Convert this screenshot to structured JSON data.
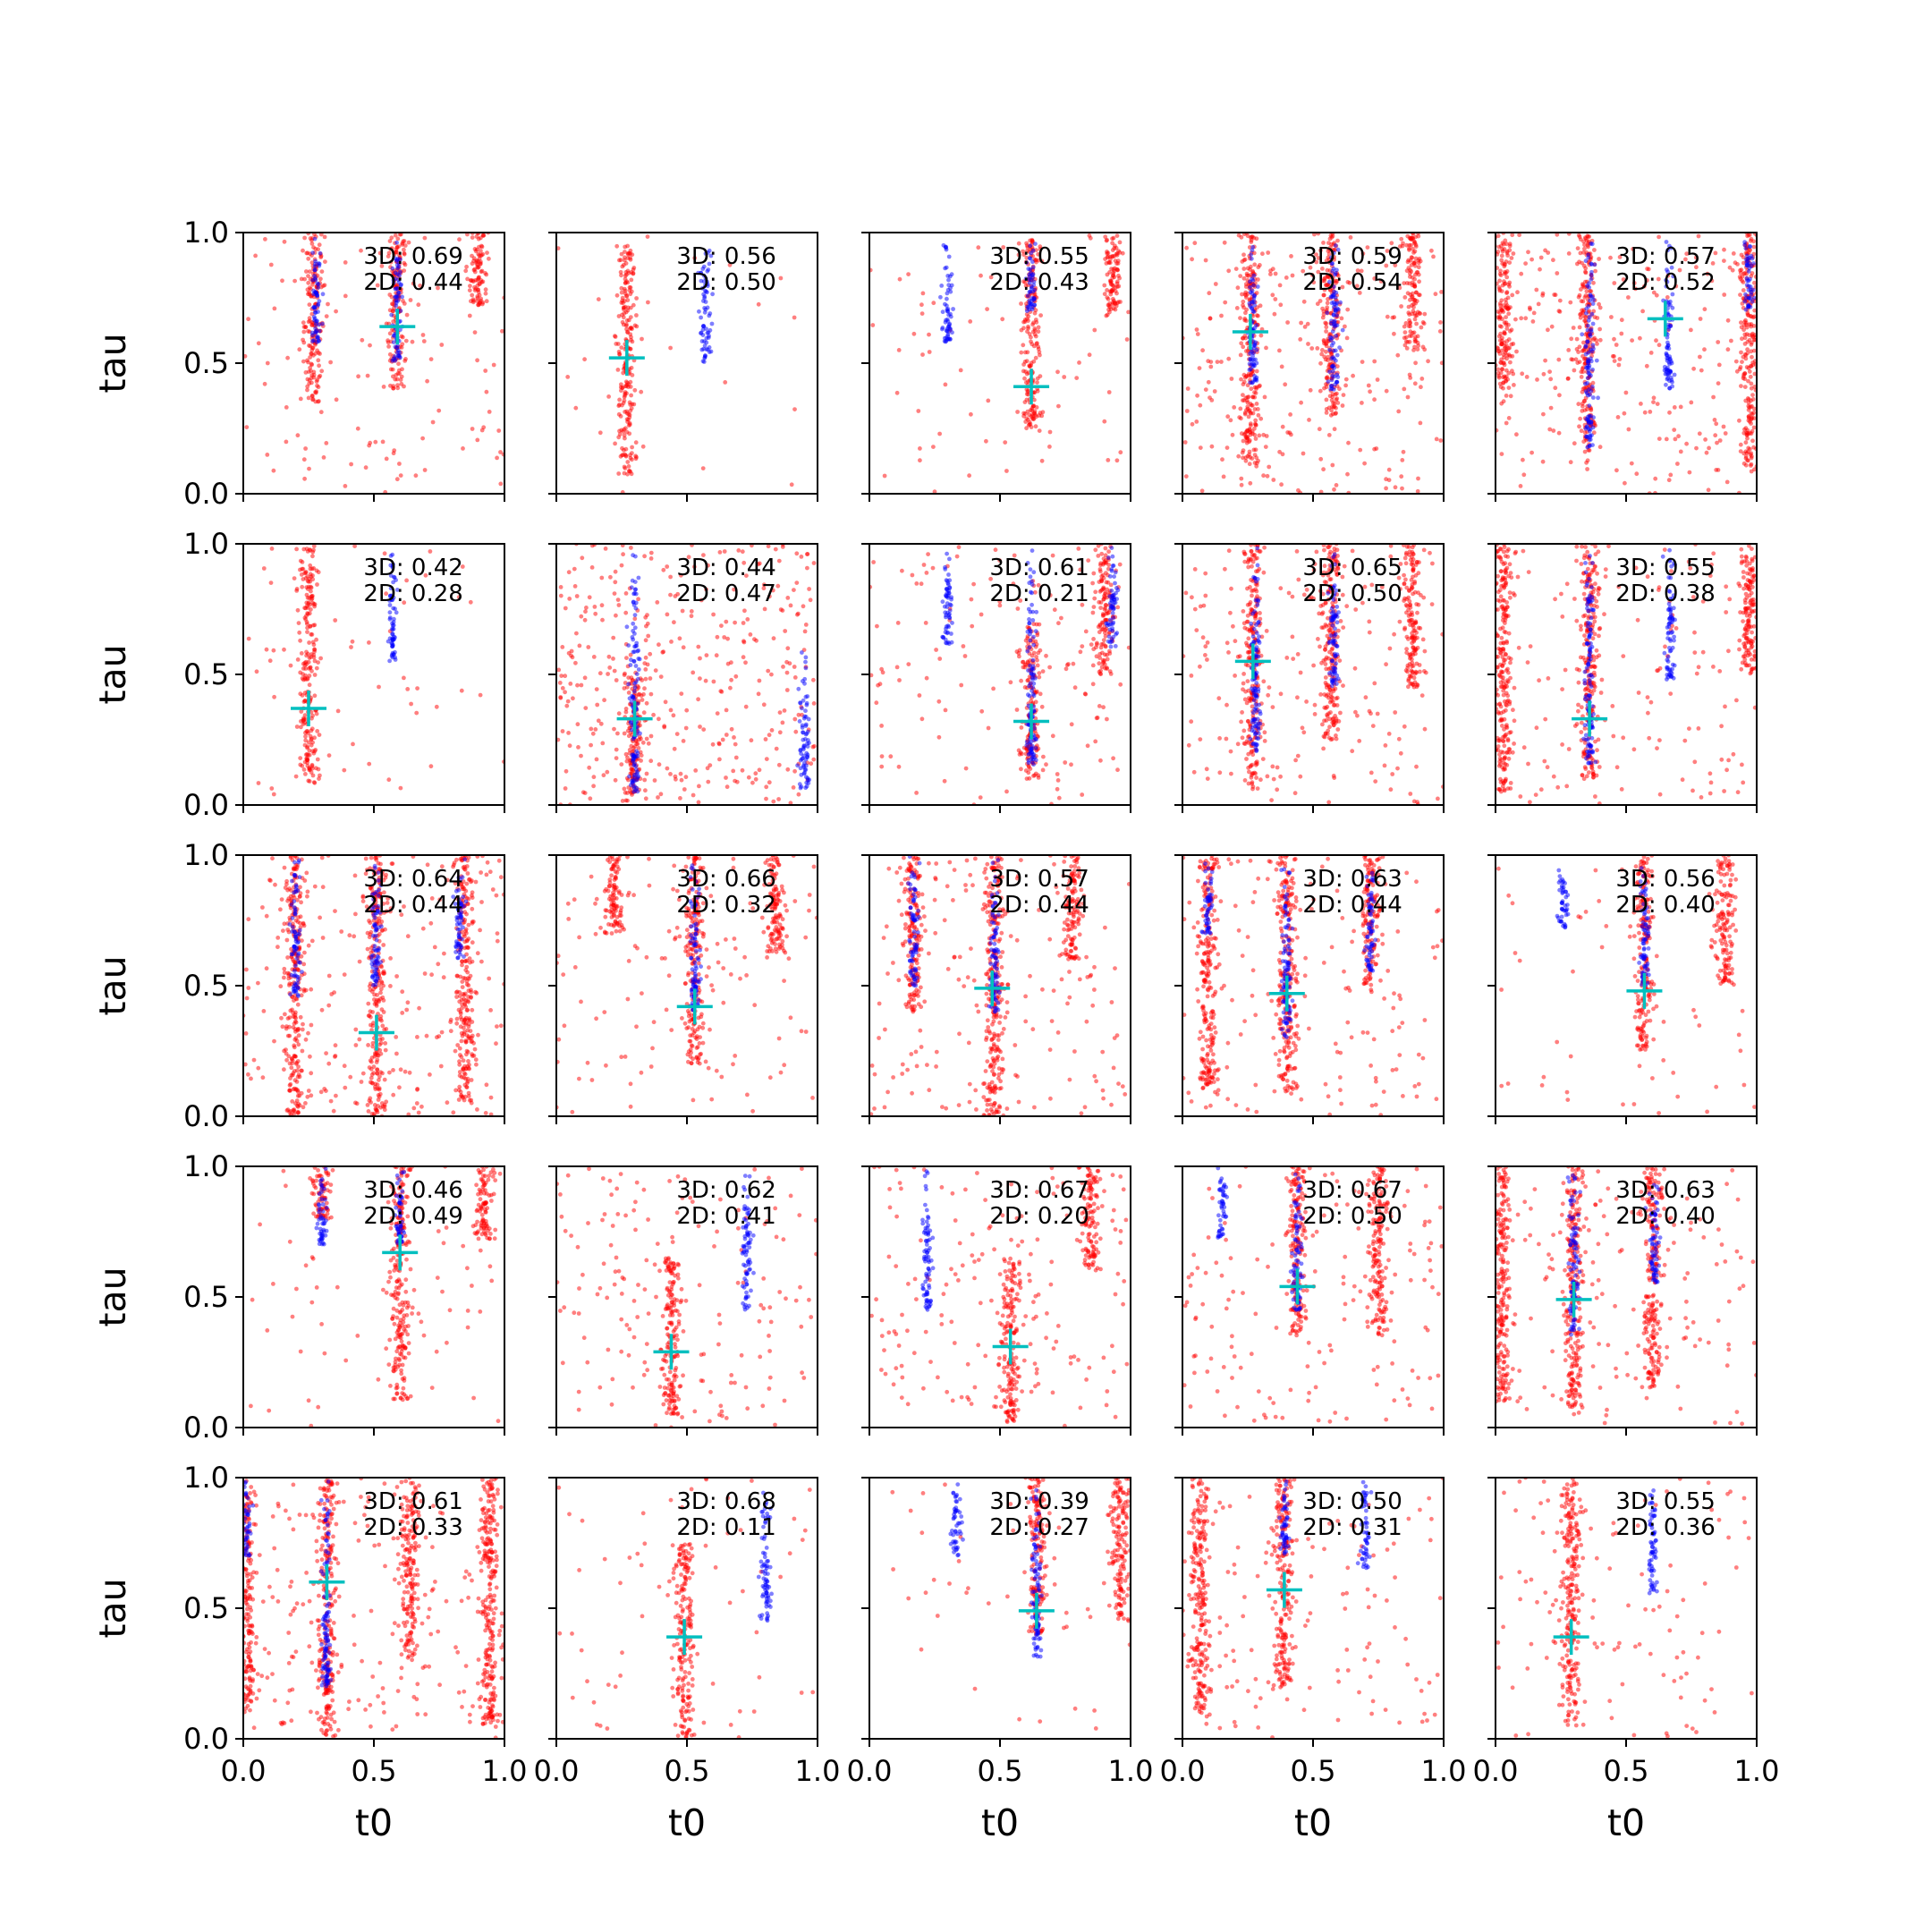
{
  "figure": {
    "xlabel": "t0",
    "ylabel": "tau",
    "xticks": [
      "0.0",
      "0.5",
      "1.0"
    ],
    "yticks": [
      "0.0",
      "0.5",
      "1.0"
    ],
    "colors": {
      "samples_a": "#ff0000",
      "samples_b": "#0000ff",
      "marker": "#00bfbf",
      "axes": "#000000"
    }
  },
  "chart_data": {
    "type": "scatter",
    "grid": false,
    "rows": 5,
    "cols": 5,
    "xlim": [
      0,
      1
    ],
    "ylim": [
      0,
      1
    ],
    "xlabel": "t0",
    "ylabel": "tau",
    "panels": [
      {
        "label_3d": "3D: 0.69",
        "label_2d": "2D: 0.44",
        "marker": [
          0.59,
          0.64
        ],
        "red_bands": [
          [
            0.27,
            0.35,
            1.0
          ],
          [
            0.59,
            0.4,
            1.0
          ],
          [
            0.9,
            0.72,
            1.0
          ]
        ],
        "blue_bands": [
          [
            0.28,
            0.58,
            1.0
          ],
          [
            0.59,
            0.5,
            1.0
          ]
        ],
        "scatter_red": 0.25
      },
      {
        "label_3d": "3D: 0.56",
        "label_2d": "2D: 0.50",
        "marker": [
          0.27,
          0.52
        ],
        "red_bands": [
          [
            0.27,
            0.07,
            0.95
          ]
        ],
        "blue_bands": [
          [
            0.57,
            0.5,
            1.0
          ]
        ],
        "scatter_red": 0.05
      },
      {
        "label_3d": "3D: 0.55",
        "label_2d": "2D: 0.43",
        "marker": [
          0.62,
          0.41
        ],
        "red_bands": [
          [
            0.62,
            0.24,
            1.0
          ],
          [
            0.93,
            0.68,
            1.0
          ]
        ],
        "blue_bands": [
          [
            0.3,
            0.58,
            1.0
          ],
          [
            0.62,
            0.7,
            1.0
          ]
        ],
        "scatter_red": 0.15
      },
      {
        "label_3d": "3D: 0.59",
        "label_2d": "2D: 0.54",
        "marker": [
          0.26,
          0.62
        ],
        "red_bands": [
          [
            0.26,
            0.1,
            1.0
          ],
          [
            0.57,
            0.3,
            1.0
          ],
          [
            0.88,
            0.55,
            1.0
          ]
        ],
        "blue_bands": [
          [
            0.27,
            0.42,
            1.0
          ],
          [
            0.58,
            0.38,
            1.0
          ]
        ],
        "scatter_red": 0.55
      },
      {
        "label_3d": "3D: 0.57",
        "label_2d": "2D: 0.52",
        "marker": [
          0.65,
          0.67
        ],
        "red_bands": [
          [
            0.03,
            0.4,
            1.0
          ],
          [
            0.35,
            0.15,
            1.0
          ],
          [
            0.97,
            0.1,
            1.0
          ]
        ],
        "blue_bands": [
          [
            0.36,
            0.17,
            1.0
          ],
          [
            0.66,
            0.4,
            1.0
          ],
          [
            0.97,
            0.7,
            1.0
          ]
        ],
        "scatter_red": 0.55
      },
      {
        "label_3d": "3D: 0.42",
        "label_2d": "2D: 0.28",
        "marker": [
          0.25,
          0.37
        ],
        "red_bands": [
          [
            0.25,
            0.08,
            1.0
          ]
        ],
        "blue_bands": [
          [
            0.57,
            0.55,
            1.0
          ]
        ],
        "scatter_red": 0.12
      },
      {
        "label_3d": "3D: 0.44",
        "label_2d": "2D: 0.47",
        "marker": [
          0.3,
          0.33
        ],
        "red_bands": [
          [
            0.3,
            0.02,
            0.5
          ]
        ],
        "blue_bands": [
          [
            0.3,
            0.05,
            1.0
          ],
          [
            0.95,
            0.05,
            0.6
          ]
        ],
        "scatter_red": 0.9
      },
      {
        "label_3d": "3D: 0.61",
        "label_2d": "2D: 0.21",
        "marker": [
          0.62,
          0.32
        ],
        "red_bands": [
          [
            0.62,
            0.1,
            0.7
          ],
          [
            0.9,
            0.5,
            1.0
          ]
        ],
        "blue_bands": [
          [
            0.62,
            0.15,
            1.0
          ],
          [
            0.3,
            0.6,
            1.0
          ],
          [
            0.93,
            0.6,
            1.0
          ]
        ],
        "scatter_red": 0.3
      },
      {
        "label_3d": "3D: 0.65",
        "label_2d": "2D: 0.50",
        "marker": [
          0.27,
          0.55
        ],
        "red_bands": [
          [
            0.27,
            0.05,
            1.0
          ],
          [
            0.57,
            0.25,
            1.0
          ],
          [
            0.88,
            0.45,
            1.0
          ]
        ],
        "blue_bands": [
          [
            0.28,
            0.2,
            1.0
          ],
          [
            0.58,
            0.45,
            1.0
          ]
        ],
        "scatter_red": 0.4
      },
      {
        "label_3d": "3D: 0.55",
        "label_2d": "2D: 0.38",
        "marker": [
          0.36,
          0.33
        ],
        "red_bands": [
          [
            0.03,
            0.05,
            1.0
          ],
          [
            0.36,
            0.1,
            1.0
          ],
          [
            0.97,
            0.5,
            1.0
          ]
        ],
        "blue_bands": [
          [
            0.36,
            0.15,
            1.0
          ],
          [
            0.67,
            0.48,
            1.0
          ]
        ],
        "scatter_red": 0.35
      },
      {
        "label_3d": "3D: 0.64",
        "label_2d": "2D: 0.44",
        "marker": [
          0.51,
          0.32
        ],
        "red_bands": [
          [
            0.2,
            0.0,
            1.0
          ],
          [
            0.51,
            0.0,
            1.0
          ],
          [
            0.85,
            0.05,
            1.0
          ]
        ],
        "blue_bands": [
          [
            0.2,
            0.45,
            1.0
          ],
          [
            0.51,
            0.5,
            1.0
          ],
          [
            0.83,
            0.6,
            1.0
          ]
        ],
        "scatter_red": 0.5
      },
      {
        "label_3d": "3D: 0.66",
        "label_2d": "2D: 0.32",
        "marker": [
          0.53,
          0.42
        ],
        "red_bands": [
          [
            0.22,
            0.7,
            1.0
          ],
          [
            0.53,
            0.2,
            1.0
          ],
          [
            0.84,
            0.6,
            1.0
          ]
        ],
        "blue_bands": [
          [
            0.53,
            0.4,
            1.0
          ]
        ],
        "scatter_red": 0.3
      },
      {
        "label_3d": "3D: 0.57",
        "label_2d": "2D: 0.44",
        "marker": [
          0.47,
          0.49
        ],
        "red_bands": [
          [
            0.17,
            0.4,
            1.0
          ],
          [
            0.48,
            0.0,
            1.0
          ],
          [
            0.78,
            0.6,
            1.0
          ]
        ],
        "blue_bands": [
          [
            0.17,
            0.5,
            1.0
          ],
          [
            0.48,
            0.4,
            1.0
          ]
        ],
        "scatter_red": 0.4
      },
      {
        "label_3d": "3D: 0.63",
        "label_2d": "2D: 0.44",
        "marker": [
          0.4,
          0.47
        ],
        "red_bands": [
          [
            0.1,
            0.1,
            1.0
          ],
          [
            0.4,
            0.08,
            1.0
          ],
          [
            0.72,
            0.5,
            1.0
          ]
        ],
        "blue_bands": [
          [
            0.4,
            0.3,
            1.0
          ],
          [
            0.72,
            0.55,
            1.0
          ],
          [
            0.1,
            0.7,
            1.0
          ]
        ],
        "scatter_red": 0.35
      },
      {
        "label_3d": "3D: 0.56",
        "label_2d": "2D: 0.40",
        "marker": [
          0.57,
          0.48
        ],
        "red_bands": [
          [
            0.57,
            0.25,
            1.0
          ],
          [
            0.88,
            0.5,
            1.0
          ]
        ],
        "blue_bands": [
          [
            0.57,
            0.5,
            1.0
          ],
          [
            0.26,
            0.72,
            1.0
          ]
        ],
        "scatter_red": 0.12
      },
      {
        "label_3d": "3D: 0.46",
        "label_2d": "2D: 0.49",
        "marker": [
          0.6,
          0.67
        ],
        "red_bands": [
          [
            0.6,
            0.1,
            1.0
          ],
          [
            0.3,
            0.8,
            1.0
          ],
          [
            0.92,
            0.72,
            1.0
          ]
        ],
        "blue_bands": [
          [
            0.3,
            0.68,
            1.0
          ],
          [
            0.6,
            0.7,
            1.0
          ]
        ],
        "scatter_red": 0.15
      },
      {
        "label_3d": "3D: 0.62",
        "label_2d": "2D: 0.41",
        "marker": [
          0.44,
          0.29
        ],
        "red_bands": [
          [
            0.44,
            0.05,
            0.65
          ]
        ],
        "blue_bands": [
          [
            0.73,
            0.45,
            1.0
          ]
        ],
        "scatter_red": 0.4
      },
      {
        "label_3d": "3D: 0.67",
        "label_2d": "2D: 0.20",
        "marker": [
          0.54,
          0.31
        ],
        "red_bands": [
          [
            0.54,
            0.02,
            0.65
          ],
          [
            0.85,
            0.6,
            1.0
          ]
        ],
        "blue_bands": [
          [
            0.22,
            0.45,
            1.0
          ]
        ],
        "scatter_red": 0.4
      },
      {
        "label_3d": "3D: 0.67",
        "label_2d": "2D: 0.50",
        "marker": [
          0.44,
          0.54
        ],
        "red_bands": [
          [
            0.44,
            0.35,
            1.0
          ],
          [
            0.75,
            0.35,
            1.0
          ]
        ],
        "blue_bands": [
          [
            0.44,
            0.45,
            1.0
          ],
          [
            0.15,
            0.72,
            1.0
          ]
        ],
        "scatter_red": 0.35
      },
      {
        "label_3d": "3D: 0.63",
        "label_2d": "2D: 0.40",
        "marker": [
          0.3,
          0.49
        ],
        "red_bands": [
          [
            0.3,
            0.05,
            1.0
          ],
          [
            0.02,
            0.1,
            1.0
          ],
          [
            0.6,
            0.15,
            1.0
          ]
        ],
        "blue_bands": [
          [
            0.3,
            0.35,
            1.0
          ],
          [
            0.61,
            0.55,
            1.0
          ]
        ],
        "scatter_red": 0.35
      },
      {
        "label_3d": "3D: 0.61",
        "label_2d": "2D: 0.33",
        "marker": [
          0.32,
          0.6
        ],
        "red_bands": [
          [
            0.01,
            0.1,
            1.0
          ],
          [
            0.32,
            0.0,
            1.0
          ],
          [
            0.64,
            0.3,
            1.0
          ],
          [
            0.94,
            0.05,
            1.0
          ]
        ],
        "blue_bands": [
          [
            0.01,
            0.7,
            1.0
          ],
          [
            0.32,
            0.2,
            1.0
          ]
        ],
        "scatter_red": 0.45
      },
      {
        "label_3d": "3D: 0.68",
        "label_2d": "2D: 0.11",
        "marker": [
          0.49,
          0.39
        ],
        "red_bands": [
          [
            0.49,
            0.0,
            0.75
          ]
        ],
        "blue_bands": [
          [
            0.8,
            0.45,
            1.0
          ]
        ],
        "scatter_red": 0.15
      },
      {
        "label_3d": "3D: 0.39",
        "label_2d": "2D: 0.27",
        "marker": [
          0.64,
          0.49
        ],
        "red_bands": [
          [
            0.64,
            0.4,
            1.0
          ],
          [
            0.96,
            0.45,
            1.0
          ]
        ],
        "blue_bands": [
          [
            0.64,
            0.3,
            1.0
          ],
          [
            0.33,
            0.7,
            1.0
          ]
        ],
        "scatter_red": 0.1
      },
      {
        "label_3d": "3D: 0.50",
        "label_2d": "2D: 0.31",
        "marker": [
          0.39,
          0.57
        ],
        "red_bands": [
          [
            0.07,
            0.08,
            1.0
          ],
          [
            0.39,
            0.2,
            1.0
          ]
        ],
        "blue_bands": [
          [
            0.7,
            0.65,
            1.0
          ],
          [
            0.39,
            0.7,
            1.0
          ]
        ],
        "scatter_red": 0.3
      },
      {
        "label_3d": "3D: 0.55",
        "label_2d": "2D: 0.36",
        "marker": [
          0.29,
          0.39
        ],
        "red_bands": [
          [
            0.29,
            0.05,
            1.0
          ]
        ],
        "blue_bands": [
          [
            0.6,
            0.55,
            1.0
          ]
        ],
        "scatter_red": 0.25
      }
    ]
  }
}
